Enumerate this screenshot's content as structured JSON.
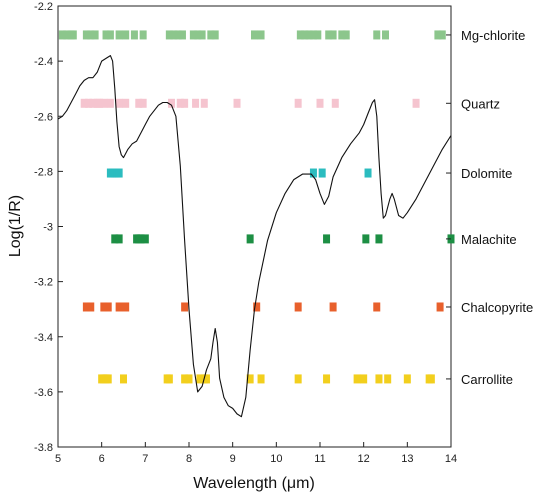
{
  "chart_data": {
    "type": "line",
    "xlabel": "Wavelength (μm)",
    "ylabel": "Log(1/R)",
    "xlim": [
      5,
      14
    ],
    "ylim": [
      -3.8,
      -2.2
    ],
    "xticks": [
      5,
      6,
      7,
      8,
      9,
      10,
      11,
      12,
      13,
      14
    ],
    "xtick_labels": [
      "5",
      "6",
      "7",
      "8",
      "9",
      "10",
      "11",
      "12",
      "13",
      "14"
    ],
    "yticks": [
      -2.2,
      -2.4,
      -2.6,
      -2.8,
      -3.0,
      -3.2,
      -3.4,
      -3.6,
      -3.8
    ],
    "ytick_labels": [
      "-2.2",
      "-2.4",
      "-2.6",
      "-2.8",
      "-3",
      "-3.2",
      "-3.4",
      "-3.6",
      "-3.8"
    ],
    "grid": false,
    "spectrum": {
      "color": "#111111",
      "points": [
        [
          5.0,
          -2.61
        ],
        [
          5.1,
          -2.6
        ],
        [
          5.2,
          -2.58
        ],
        [
          5.3,
          -2.55
        ],
        [
          5.4,
          -2.52
        ],
        [
          5.5,
          -2.49
        ],
        [
          5.6,
          -2.47
        ],
        [
          5.7,
          -2.46
        ],
        [
          5.8,
          -2.46
        ],
        [
          5.9,
          -2.44
        ],
        [
          6.0,
          -2.4
        ],
        [
          6.1,
          -2.39
        ],
        [
          6.2,
          -2.38
        ],
        [
          6.25,
          -2.4
        ],
        [
          6.3,
          -2.5
        ],
        [
          6.35,
          -2.62
        ],
        [
          6.4,
          -2.71
        ],
        [
          6.45,
          -2.74
        ],
        [
          6.5,
          -2.75
        ],
        [
          6.6,
          -2.72
        ],
        [
          6.7,
          -2.7
        ],
        [
          6.8,
          -2.69
        ],
        [
          6.9,
          -2.66
        ],
        [
          7.0,
          -2.63
        ],
        [
          7.1,
          -2.6
        ],
        [
          7.2,
          -2.58
        ],
        [
          7.3,
          -2.56
        ],
        [
          7.4,
          -2.55
        ],
        [
          7.5,
          -2.55
        ],
        [
          7.6,
          -2.56
        ],
        [
          7.7,
          -2.6
        ],
        [
          7.8,
          -2.78
        ],
        [
          7.9,
          -3.05
        ],
        [
          8.0,
          -3.3
        ],
        [
          8.1,
          -3.5
        ],
        [
          8.2,
          -3.6
        ],
        [
          8.3,
          -3.58
        ],
        [
          8.4,
          -3.52
        ],
        [
          8.5,
          -3.48
        ],
        [
          8.55,
          -3.42
        ],
        [
          8.6,
          -3.37
        ],
        [
          8.65,
          -3.42
        ],
        [
          8.7,
          -3.55
        ],
        [
          8.8,
          -3.62
        ],
        [
          8.9,
          -3.65
        ],
        [
          9.0,
          -3.66
        ],
        [
          9.1,
          -3.68
        ],
        [
          9.2,
          -3.69
        ],
        [
          9.3,
          -3.62
        ],
        [
          9.4,
          -3.45
        ],
        [
          9.5,
          -3.3
        ],
        [
          9.6,
          -3.2
        ],
        [
          9.8,
          -3.05
        ],
        [
          10.0,
          -2.95
        ],
        [
          10.2,
          -2.88
        ],
        [
          10.4,
          -2.83
        ],
        [
          10.6,
          -2.81
        ],
        [
          10.8,
          -2.81
        ],
        [
          10.9,
          -2.83
        ],
        [
          11.0,
          -2.88
        ],
        [
          11.1,
          -2.92
        ],
        [
          11.2,
          -2.89
        ],
        [
          11.3,
          -2.82
        ],
        [
          11.5,
          -2.75
        ],
        [
          11.7,
          -2.7
        ],
        [
          11.9,
          -2.66
        ],
        [
          12.0,
          -2.63
        ],
        [
          12.1,
          -2.59
        ],
        [
          12.2,
          -2.55
        ],
        [
          12.25,
          -2.54
        ],
        [
          12.3,
          -2.6
        ],
        [
          12.35,
          -2.75
        ],
        [
          12.4,
          -2.88
        ],
        [
          12.45,
          -2.97
        ],
        [
          12.5,
          -2.96
        ],
        [
          12.6,
          -2.9
        ],
        [
          12.65,
          -2.88
        ],
        [
          12.7,
          -2.9
        ],
        [
          12.8,
          -2.96
        ],
        [
          12.9,
          -2.97
        ],
        [
          13.0,
          -2.95
        ],
        [
          13.2,
          -2.9
        ],
        [
          13.4,
          -2.84
        ],
        [
          13.6,
          -2.78
        ],
        [
          13.8,
          -2.72
        ],
        [
          14.0,
          -2.67
        ]
      ]
    },
    "series": [
      {
        "name": "Mg-chlorite",
        "color": "#8cc68c",
        "y": -2.305,
        "x": [
          5.1,
          5.2,
          5.3,
          5.35,
          5.65,
          5.75,
          5.85,
          6.1,
          6.2,
          6.4,
          6.55,
          6.75,
          6.95,
          7.55,
          7.65,
          7.75,
          7.85,
          8.1,
          8.2,
          8.3,
          8.5,
          8.6,
          9.5,
          9.65,
          10.55,
          10.65,
          10.75,
          10.85,
          10.95,
          11.2,
          11.3,
          11.5,
          11.6,
          12.3,
          12.5,
          13.7,
          13.8
        ]
      },
      {
        "name": "Quartz",
        "color": "#f5c4cf",
        "y": -2.553,
        "x": [
          5.6,
          5.7,
          5.8,
          5.9,
          5.95,
          6.05,
          6.2,
          6.4,
          6.55,
          6.85,
          6.95,
          7.6,
          7.8,
          7.9,
          8.15,
          8.35,
          9.1,
          10.5,
          11.0,
          11.35,
          13.2
        ]
      },
      {
        "name": "Dolomite",
        "color": "#2bbcbf",
        "y": -2.806,
        "x": [
          6.2,
          6.25,
          6.3,
          6.35,
          6.4,
          10.85,
          11.05,
          12.1
        ]
      },
      {
        "name": "Malachite",
        "color": "#1d8f44",
        "y": -3.045,
        "x": [
          6.3,
          6.4,
          6.8,
          6.85,
          6.9,
          7.0,
          9.4,
          11.15,
          12.05,
          12.35,
          14.0
        ]
      },
      {
        "name": "Chalcopyrite",
        "color": "#e8602c",
        "y": -3.292,
        "x": [
          5.65,
          5.75,
          6.05,
          6.15,
          6.4,
          6.55,
          7.9,
          9.55,
          10.5,
          11.3,
          12.3,
          13.75
        ]
      },
      {
        "name": "Carrollite",
        "color": "#f2cf1d",
        "y": -3.553,
        "x": [
          6.0,
          6.05,
          6.1,
          6.15,
          6.5,
          7.5,
          7.55,
          7.9,
          8.0,
          8.25,
          8.35,
          8.4,
          9.4,
          9.65,
          10.5,
          11.15,
          11.85,
          12.0,
          12.35,
          12.55,
          13.0,
          13.5,
          13.55
        ]
      }
    ]
  }
}
